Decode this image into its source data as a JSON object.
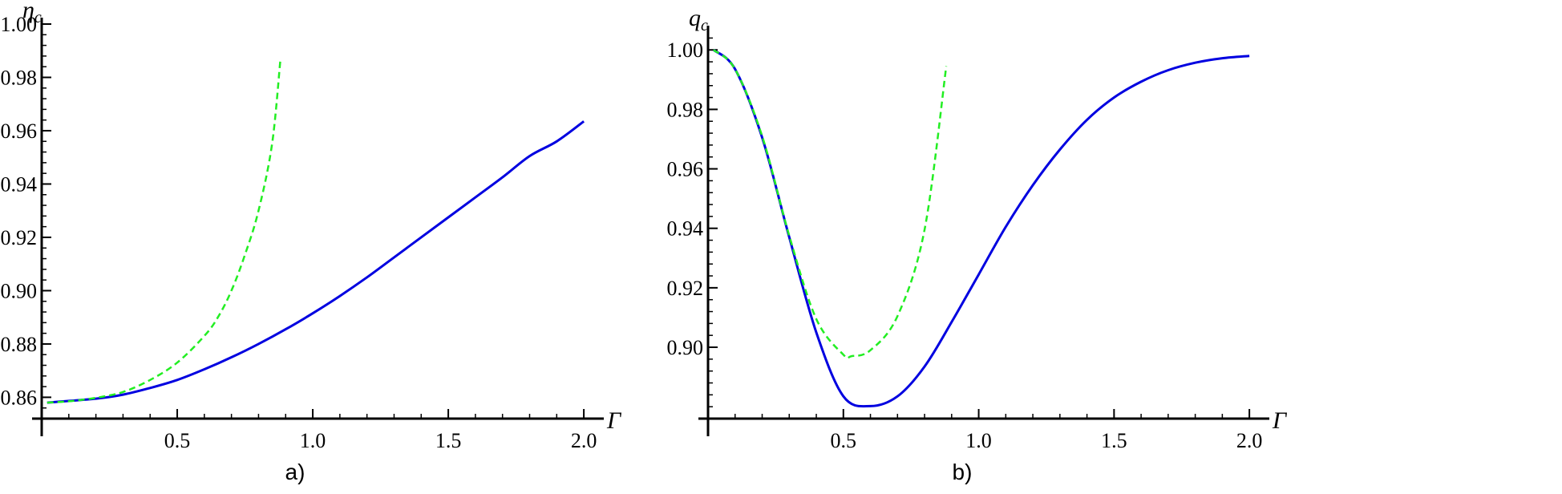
{
  "chart_data": [
    {
      "type": "line",
      "panel_label": "a)",
      "xlabel": "Γ",
      "ylabel": "η",
      "ylabel_sub": "c",
      "xlim": [
        0,
        2.05
      ],
      "ylim": [
        0.852,
        1.0
      ],
      "x_ticks": [
        {
          "v": 0.5,
          "label": "0.5"
        },
        {
          "v": 1.0,
          "label": "1.0"
        },
        {
          "v": 1.5,
          "label": "1.5"
        },
        {
          "v": 2.0,
          "label": "2.0"
        }
      ],
      "y_ticks": [
        {
          "v": 0.86,
          "label": "0.86"
        },
        {
          "v": 0.88,
          "label": "0.88"
        },
        {
          "v": 0.9,
          "label": "0.90"
        },
        {
          "v": 0.92,
          "label": "0.92"
        },
        {
          "v": 0.94,
          "label": "0.94"
        },
        {
          "v": 0.96,
          "label": "0.96"
        },
        {
          "v": 0.98,
          "label": "0.98"
        },
        {
          "v": 1.0,
          "label": "1.00"
        }
      ],
      "x_minor_step": 0.1,
      "y_minor_step": 0.004,
      "series": [
        {
          "style": "solid",
          "color": "#0000e0",
          "points": [
            [
              0.02,
              0.858
            ],
            [
              0.2,
              0.8595
            ],
            [
              0.3,
              0.861
            ],
            [
              0.4,
              0.8635
            ],
            [
              0.5,
              0.8665
            ],
            [
              0.6,
              0.8705
            ],
            [
              0.7,
              0.875
            ],
            [
              0.8,
              0.88
            ],
            [
              0.9,
              0.8855
            ],
            [
              1.0,
              0.8915
            ],
            [
              1.1,
              0.898
            ],
            [
              1.2,
              0.905
            ],
            [
              1.3,
              0.9125
            ],
            [
              1.4,
              0.92
            ],
            [
              1.5,
              0.9275
            ],
            [
              1.6,
              0.935
            ],
            [
              1.7,
              0.9425
            ],
            [
              1.8,
              0.9505
            ],
            [
              1.9,
              0.956
            ],
            [
              2.0,
              0.9635
            ]
          ]
        },
        {
          "style": "dashed",
          "color": "#22ee22",
          "points": [
            [
              0.02,
              0.858
            ],
            [
              0.1,
              0.8585
            ],
            [
              0.2,
              0.8598
            ],
            [
              0.3,
              0.862
            ],
            [
              0.4,
              0.8665
            ],
            [
              0.5,
              0.873
            ],
            [
              0.6,
              0.883
            ],
            [
              0.65,
              0.89
            ],
            [
              0.7,
              0.9
            ],
            [
              0.75,
              0.9135
            ],
            [
              0.8,
              0.93
            ],
            [
              0.85,
              0.955
            ],
            [
              0.88,
              0.986
            ]
          ]
        }
      ]
    },
    {
      "type": "line",
      "panel_label": "b)",
      "xlabel": "Γ",
      "ylabel": "q",
      "ylabel_sub": "c",
      "xlim": [
        0,
        2.05
      ],
      "ylim": [
        0.876,
        1.006
      ],
      "x_ticks": [
        {
          "v": 0.5,
          "label": "0.5"
        },
        {
          "v": 1.0,
          "label": "1.0"
        },
        {
          "v": 1.5,
          "label": "1.5"
        },
        {
          "v": 2.0,
          "label": "2.0"
        }
      ],
      "y_ticks": [
        {
          "v": 0.9,
          "label": "0.90"
        },
        {
          "v": 0.92,
          "label": "0.92"
        },
        {
          "v": 0.94,
          "label": "0.94"
        },
        {
          "v": 0.96,
          "label": "0.96"
        },
        {
          "v": 0.98,
          "label": "0.98"
        },
        {
          "v": 1.0,
          "label": "1.00"
        }
      ],
      "x_minor_step": 0.1,
      "y_minor_step": 0.004,
      "series": [
        {
          "style": "solid",
          "color": "#0000e0",
          "points": [
            [
              0.02,
              1.0
            ],
            [
              0.1,
              0.9935
            ],
            [
              0.2,
              0.9705
            ],
            [
              0.3,
              0.937
            ],
            [
              0.4,
              0.905
            ],
            [
              0.5,
              0.8835
            ],
            [
              0.6,
              0.8802
            ],
            [
              0.7,
              0.8835
            ],
            [
              0.8,
              0.8935
            ],
            [
              0.9,
              0.9085
            ],
            [
              1.0,
              0.9245
            ],
            [
              1.1,
              0.9405
            ],
            [
              1.2,
              0.9545
            ],
            [
              1.3,
              0.9665
            ],
            [
              1.4,
              0.9765
            ],
            [
              1.5,
              0.984
            ],
            [
              1.6,
              0.9893
            ],
            [
              1.7,
              0.9932
            ],
            [
              1.8,
              0.9957
            ],
            [
              1.9,
              0.9972
            ],
            [
              2.0,
              0.998
            ]
          ]
        },
        {
          "style": "dashed",
          "color": "#22ee22",
          "points": [
            [
              0.02,
              1.0
            ],
            [
              0.1,
              0.9935
            ],
            [
              0.2,
              0.971
            ],
            [
              0.3,
              0.9375
            ],
            [
              0.4,
              0.9095
            ],
            [
              0.5,
              0.8975
            ],
            [
              0.53,
              0.897
            ],
            [
              0.6,
              0.899
            ],
            [
              0.7,
              0.9105
            ],
            [
              0.8,
              0.9395
            ],
            [
              0.88,
              0.9945
            ]
          ]
        }
      ]
    }
  ]
}
